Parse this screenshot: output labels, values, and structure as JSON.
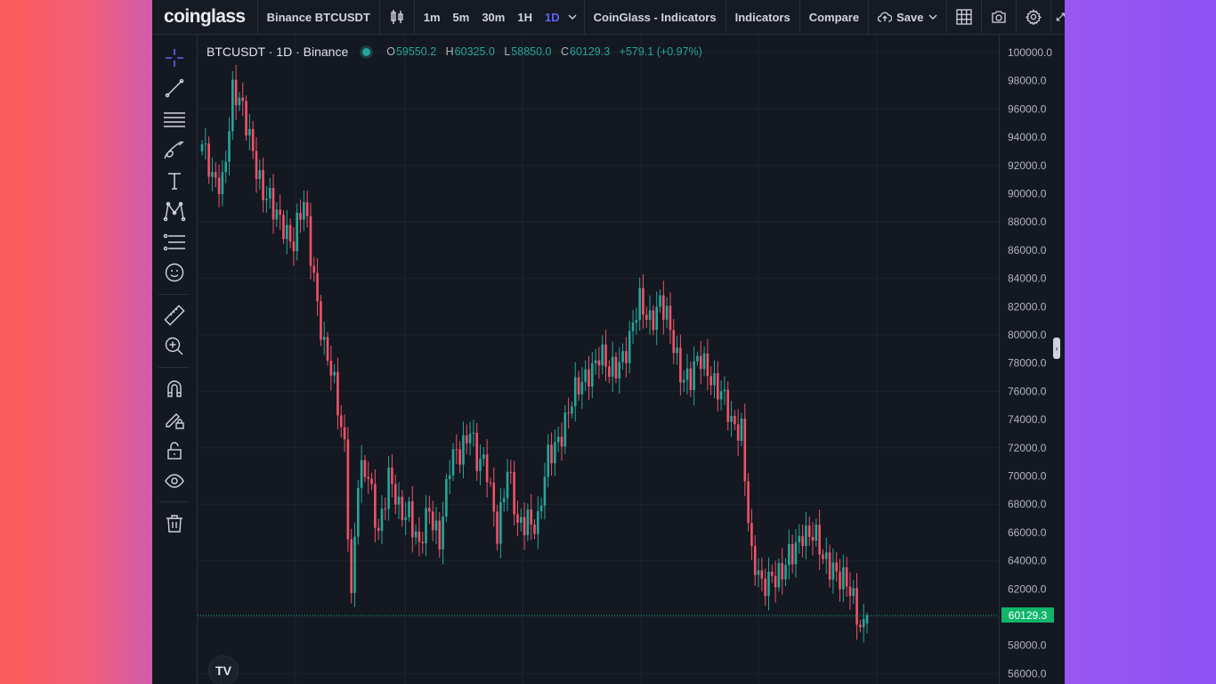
{
  "brand": "coinglass",
  "toolbar": {
    "symbol": "Binance BTCUSDT",
    "intervals": [
      "1m",
      "5m",
      "30m",
      "1H",
      "1D"
    ],
    "active_interval": "1D",
    "indicators_menu": "CoinGlass - Indicators",
    "indicators": "Indicators",
    "compare": "Compare",
    "save": "Save"
  },
  "legend": {
    "title": "BTCUSDT · 1D · Binance",
    "o_label": "O",
    "o": "59550.2",
    "h_label": "H",
    "h": "60325.0",
    "l_label": "L",
    "l": "58850.0",
    "c_label": "C",
    "c": "60129.3",
    "change": "+579.1 (+0.97%)"
  },
  "price_axis": [
    "100000.0",
    "98000.0",
    "96000.0",
    "94000.0",
    "92000.0",
    "90000.0",
    "88000.0",
    "86000.0",
    "84000.0",
    "82000.0",
    "80000.0",
    "78000.0",
    "76000.0",
    "74000.0",
    "72000.0",
    "70000.0",
    "68000.0",
    "66000.0",
    "64000.0",
    "62000.0",
    "58000.0",
    "56000.0"
  ],
  "last_price": "60129.3",
  "colors": {
    "up": "#26a69a",
    "down": "#ef5367",
    "accent": "#5f63ff",
    "last_price_tag": "#10b56b"
  },
  "tools": [
    "crosshair-icon",
    "trend-line-icon",
    "horizontal-lines-icon",
    "brush-icon",
    "text-icon",
    "pattern-icon",
    "fib-icon",
    "emoji-icon",
    "ruler-icon",
    "zoom-in-icon",
    "magnet-icon",
    "lock-drawing-icon",
    "unlock-icon",
    "eye-icon",
    "trash-icon"
  ],
  "tv_logo": "TV"
}
